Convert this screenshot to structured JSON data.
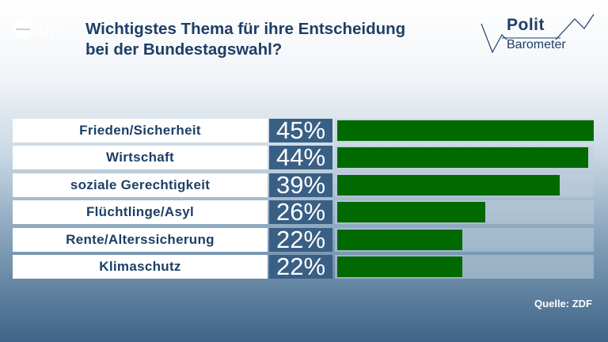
{
  "header": {
    "title_line1": "Wichtigstes Thema für ihre Entscheidung",
    "title_line2": "bei der Bundestagswahl?",
    "zdf_logo_text": "ZDF",
    "polit_word1": "Polit",
    "polit_word2": "Barometer"
  },
  "source": "Quelle: ZDF",
  "colors": {
    "bar": "#006a00",
    "pct_box": "#3a5f85",
    "title": "#1d3f66"
  },
  "chart_data": {
    "type": "bar",
    "orientation": "horizontal",
    "title": "Wichtigstes Thema für ihre Entscheidung bei der Bundestagswahl?",
    "categories": [
      "Frieden/Sicherheit",
      "Wirtschaft",
      "soziale Gerechtigkeit",
      "Flüchtlinge/Asyl",
      "Rente/Alterssicherung",
      "Klimaschutz"
    ],
    "values": [
      45,
      44,
      39,
      26,
      22,
      22
    ],
    "value_labels": [
      "45%",
      "44%",
      "39%",
      "26%",
      "22%",
      "22%"
    ],
    "unit": "%",
    "xlim": [
      0,
      45
    ],
    "grid": false
  }
}
